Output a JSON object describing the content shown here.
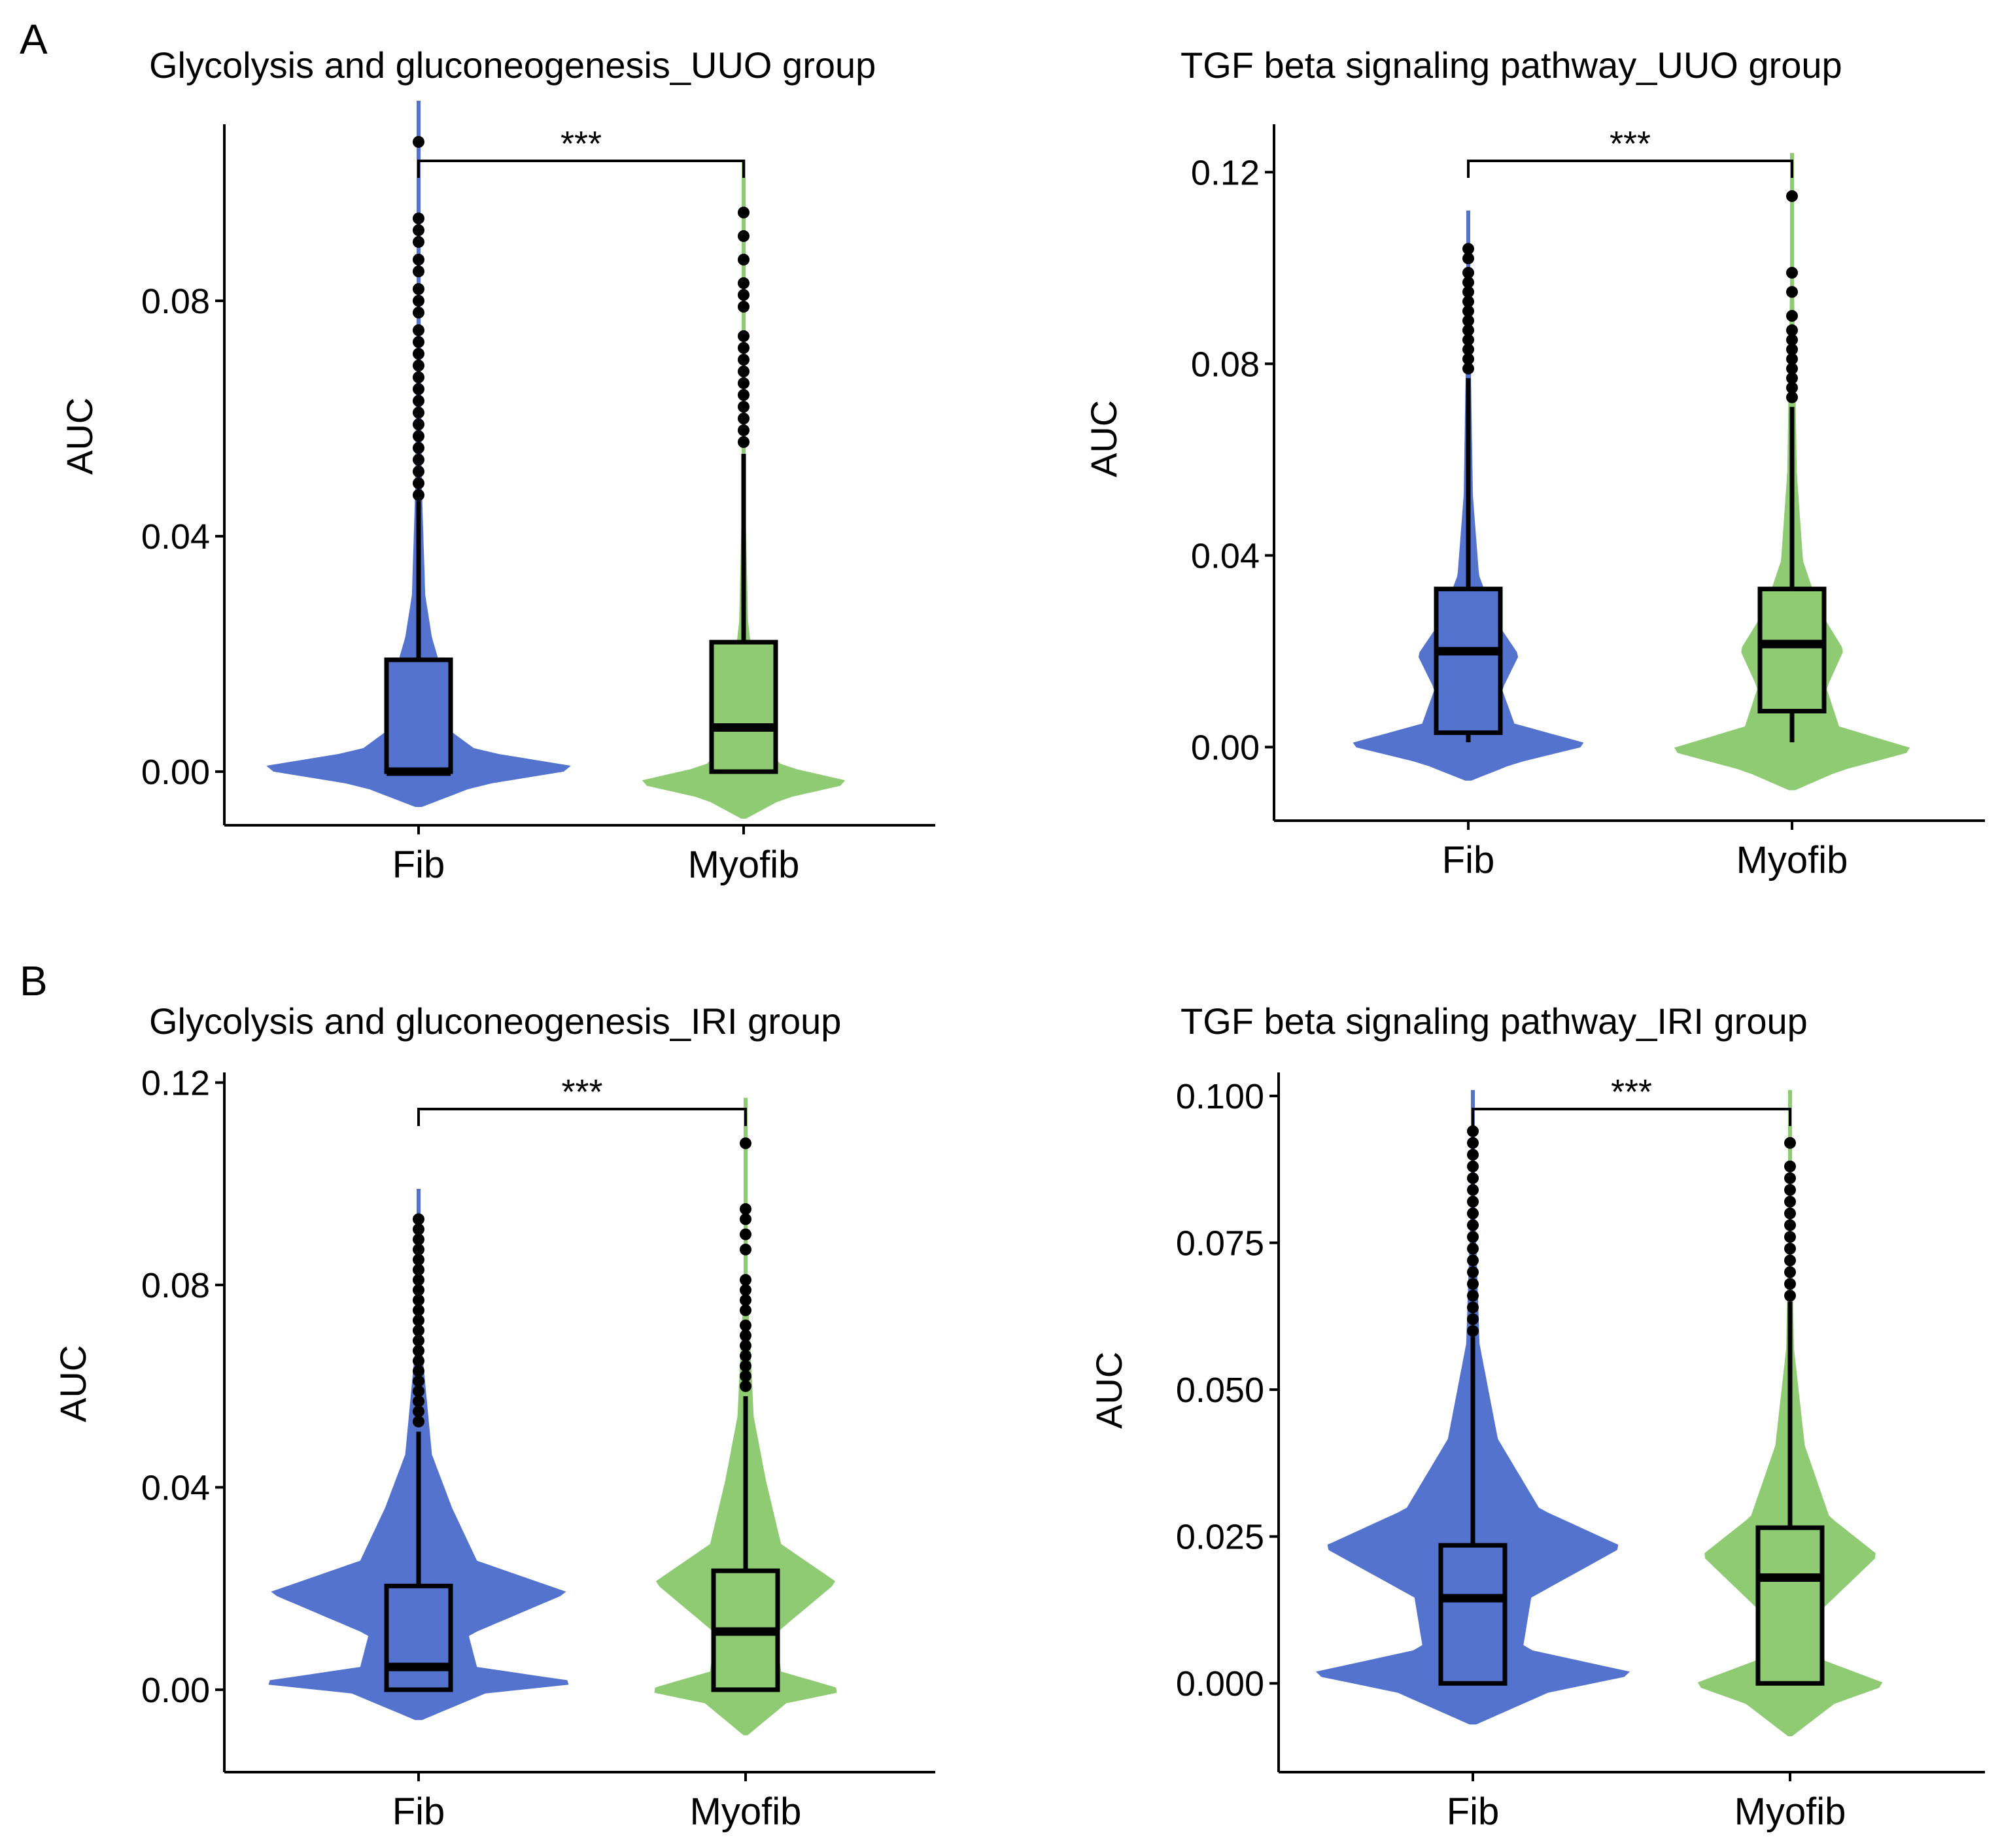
{
  "panel_letters": [
    "A",
    "B"
  ],
  "chart_data": [
    {
      "type": "violin",
      "title": "Glycolysis and gluconeogenesis_UUO group",
      "ylabel": "AUC",
      "categories": [
        "Fib",
        "Myofib"
      ],
      "colors": [
        "#5473cf",
        "#8ecb72"
      ],
      "yticks": [
        "0.00",
        "0.04",
        "0.08"
      ],
      "ylim": [
        -0.008,
        0.11
      ],
      "significance": "***",
      "boxes": [
        {
          "category": "Fib",
          "min": 0.0,
          "q1": 0.0,
          "median": 0.0,
          "q3": 0.019,
          "whisker_high": 0.046,
          "violin_min": -0.006,
          "violin_max": 0.114
        },
        {
          "category": "Myofib",
          "min": 0.0,
          "q1": 0.0,
          "median": 0.0075,
          "q3": 0.022,
          "whisker_high": 0.054,
          "violin_min": -0.008,
          "violin_max": 0.104
        }
      ],
      "outliers": [
        {
          "category": "Fib",
          "values": [
            0.107,
            0.094,
            0.092,
            0.09,
            0.087,
            0.085,
            0.082,
            0.08,
            0.078,
            0.075,
            0.073,
            0.071,
            0.069,
            0.067,
            0.065,
            0.063,
            0.061,
            0.059,
            0.057,
            0.055,
            0.053,
            0.051,
            0.049,
            0.047
          ]
        },
        {
          "category": "Myofib",
          "values": [
            0.095,
            0.091,
            0.087,
            0.083,
            0.081,
            0.079,
            0.074,
            0.072,
            0.07,
            0.068,
            0.066,
            0.064,
            0.062,
            0.06,
            0.058,
            0.056
          ]
        }
      ]
    },
    {
      "type": "violin",
      "title": "TGF beta signaling pathway_UUO group",
      "ylabel": "AUC",
      "categories": [
        "Fib",
        "Myofib"
      ],
      "colors": [
        "#5473cf",
        "#8ecb72"
      ],
      "yticks": [
        "0.00",
        "0.04",
        "0.08",
        "0.12"
      ],
      "ylim": [
        -0.014,
        0.13
      ],
      "significance": "***",
      "boxes": [
        {
          "category": "Fib",
          "min": 0.001,
          "q1": 0.003,
          "median": 0.02,
          "q3": 0.033,
          "whisker_high": 0.077,
          "violin_min": -0.007,
          "violin_max": 0.112
        },
        {
          "category": "Myofib",
          "min": 0.001,
          "q1": 0.0075,
          "median": 0.0215,
          "q3": 0.033,
          "whisker_high": 0.071,
          "violin_min": -0.009,
          "violin_max": 0.124
        }
      ],
      "outliers": [
        {
          "category": "Fib",
          "values": [
            0.104,
            0.102,
            0.099,
            0.097,
            0.095,
            0.093,
            0.091,
            0.089,
            0.087,
            0.085,
            0.083,
            0.081,
            0.079
          ]
        },
        {
          "category": "Myofib",
          "values": [
            0.115,
            0.099,
            0.095,
            0.09,
            0.087,
            0.085,
            0.083,
            0.081,
            0.079,
            0.077,
            0.075,
            0.073
          ]
        }
      ]
    },
    {
      "type": "violin",
      "title": "Glycolysis and gluconeogenesis_IRI group",
      "ylabel": "AUC",
      "categories": [
        "Fib",
        "Myofib"
      ],
      "colors": [
        "#5473cf",
        "#8ecb72"
      ],
      "yticks": [
        "0.00",
        "0.04",
        "0.08",
        "0.12"
      ],
      "ylim": [
        -0.015,
        0.122
      ],
      "significance": "***",
      "boxes": [
        {
          "category": "Fib",
          "min": 0.0,
          "q1": 0.0,
          "median": 0.0045,
          "q3": 0.0205,
          "whisker_high": 0.051,
          "violin_min": -0.006,
          "violin_max": 0.099
        },
        {
          "category": "Myofib",
          "min": 0.0,
          "q1": 0.0,
          "median": 0.0115,
          "q3": 0.0235,
          "whisker_high": 0.058,
          "violin_min": -0.009,
          "violin_max": 0.117
        }
      ],
      "outliers": [
        {
          "category": "Fib",
          "values": [
            0.093,
            0.091,
            0.089,
            0.087,
            0.085,
            0.083,
            0.081,
            0.079,
            0.077,
            0.075,
            0.073,
            0.071,
            0.069,
            0.067,
            0.065,
            0.063,
            0.061,
            0.059,
            0.057,
            0.055,
            0.053
          ]
        },
        {
          "category": "Myofib",
          "values": [
            0.108,
            0.095,
            0.093,
            0.09,
            0.087,
            0.081,
            0.079,
            0.077,
            0.075,
            0.072,
            0.07,
            0.068,
            0.066,
            0.064,
            0.062,
            0.06
          ]
        }
      ]
    },
    {
      "type": "violin",
      "title": "TGF beta signaling pathway_IRI group",
      "ylabel": "AUC",
      "categories": [
        "Fib",
        "Myofib"
      ],
      "colors": [
        "#5473cf",
        "#8ecb72"
      ],
      "yticks": [
        "0.000",
        "0.025",
        "0.050",
        "0.075",
        "0.100"
      ],
      "ylim": [
        -0.014,
        0.104
      ],
      "significance": "***",
      "boxes": [
        {
          "category": "Fib",
          "min": 0.0,
          "q1": 0.0,
          "median": 0.0145,
          "q3": 0.0235,
          "whisker_high": 0.059,
          "violin_min": -0.007,
          "violin_max": 0.101
        },
        {
          "category": "Myofib",
          "min": 0.0,
          "q1": 0.0,
          "median": 0.018,
          "q3": 0.0265,
          "whisker_high": 0.065,
          "violin_min": -0.009,
          "violin_max": 0.101
        }
      ],
      "outliers": [
        {
          "category": "Fib",
          "values": [
            0.094,
            0.092,
            0.09,
            0.088,
            0.086,
            0.084,
            0.082,
            0.08,
            0.078,
            0.076,
            0.074,
            0.072,
            0.07,
            0.068,
            0.066,
            0.064,
            0.062,
            0.06
          ]
        },
        {
          "category": "Myofib",
          "values": [
            0.092,
            0.088,
            0.086,
            0.084,
            0.082,
            0.08,
            0.078,
            0.076,
            0.074,
            0.072,
            0.07,
            0.068,
            0.066
          ]
        }
      ]
    }
  ]
}
